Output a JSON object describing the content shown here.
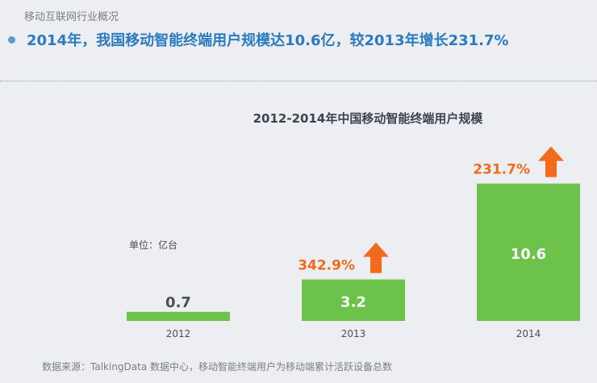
{
  "header": {
    "section_label": "移动互联网行业概况",
    "headline": "2014年，我国移动智能终端用户规模达10.6亿，较2013年增长231.7%"
  },
  "chart_data": {
    "type": "bar",
    "title": "2012-2014年中国移动智能终端用户规模",
    "unit_label": "单位：亿台",
    "categories": [
      "2012",
      "2013",
      "2014"
    ],
    "values": [
      0.7,
      3.2,
      10.6
    ],
    "value_labels": [
      "0.7",
      "3.2",
      "10.6"
    ],
    "growth_labels": [
      "",
      "342.9%",
      "231.7%"
    ],
    "ylim": [
      0,
      11.2
    ],
    "grid": false,
    "colors": {
      "bar": "#6cc24a",
      "growth_text": "#f26b1d",
      "arrow": "#f26b1d",
      "label_outside": "#4a4f57",
      "label_inside": "#ffffff"
    }
  },
  "footer": {
    "source": "数据来源：TalkingData 数据中心，移动智能终端用户为移动端累计活跃设备总数"
  }
}
